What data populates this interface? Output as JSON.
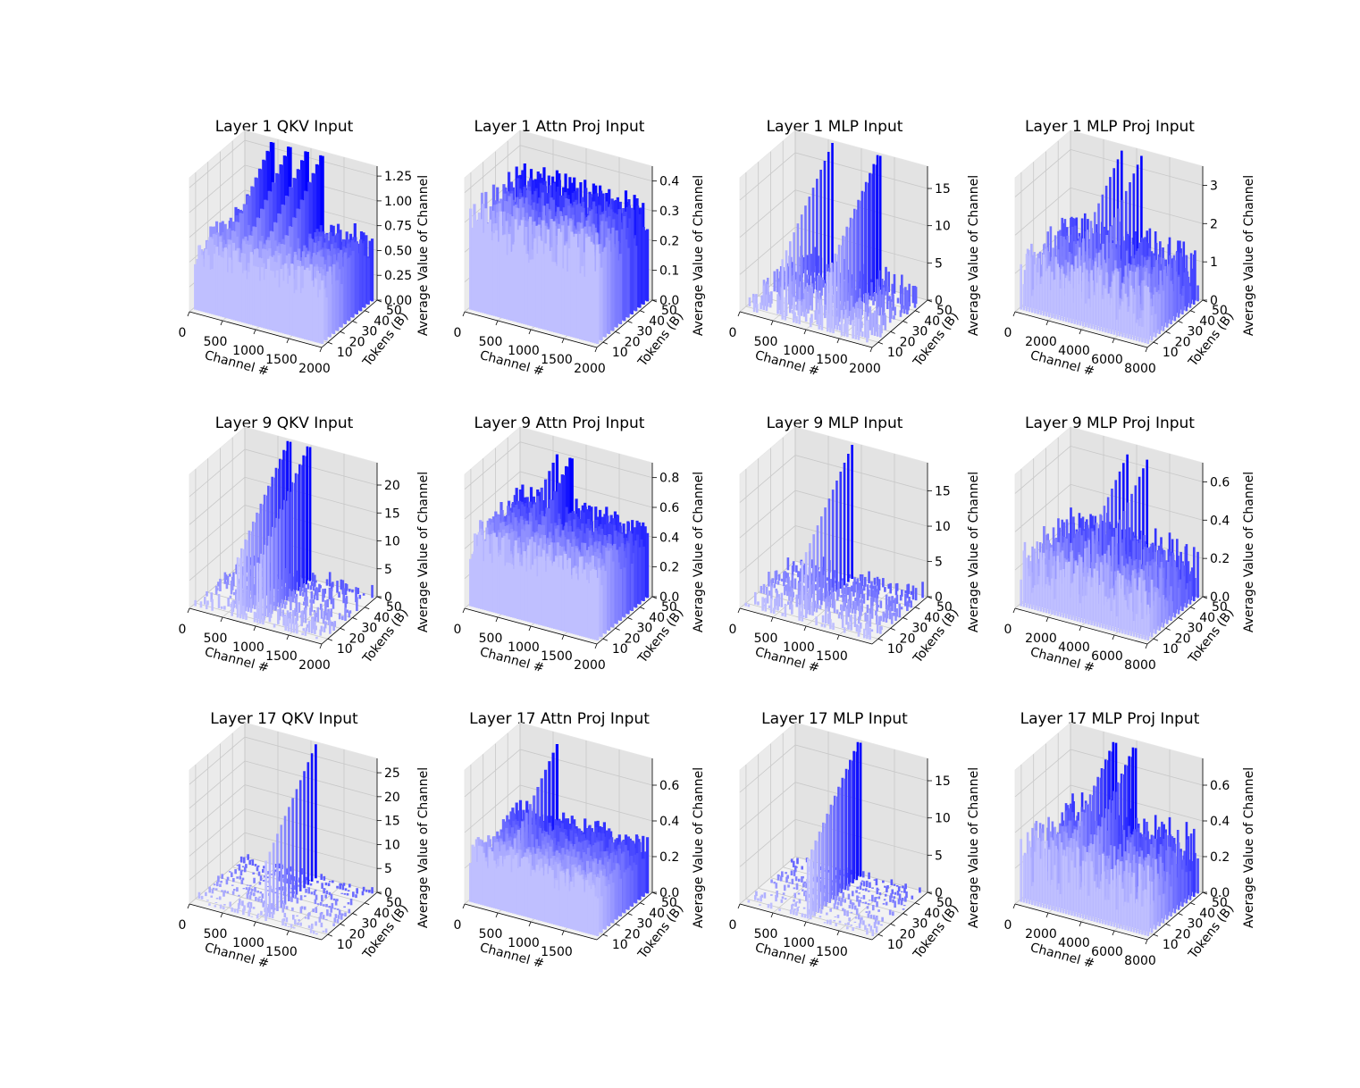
{
  "chart_data": [
    {
      "type": "bar3d",
      "title": "Layer 1 QKV Input",
      "xlabel": "Channel #",
      "ylabel": "Tokens (B)",
      "zlabel": "Average Value of Channel",
      "x_ticks": [
        "0",
        "500",
        "1000",
        "1500",
        "2000"
      ],
      "x_range": [
        0,
        2000
      ],
      "y_ticks": [
        "10",
        "20",
        "30",
        "40",
        "50"
      ],
      "y_range": [
        5,
        50
      ],
      "z_ticks": [
        "0.00",
        "0.25",
        "0.50",
        "0.75",
        "1.00",
        "1.25"
      ],
      "z_range": [
        0,
        1.35
      ],
      "pattern": "dense",
      "typical": 0.62,
      "peak": 1.33,
      "spikes": [
        0.22,
        0.35,
        0.48,
        0.6
      ]
    },
    {
      "type": "bar3d",
      "title": "Layer 1 Attn Proj Input",
      "xlabel": "Channel #",
      "ylabel": "Tokens (B)",
      "zlabel": "Average Value of Channel",
      "x_ticks": [
        "0",
        "500",
        "1000",
        "1500",
        "2000"
      ],
      "x_range": [
        0,
        2000
      ],
      "y_ticks": [
        "10",
        "20",
        "30",
        "40",
        "50"
      ],
      "y_range": [
        5,
        50
      ],
      "z_ticks": [
        "0.0",
        "0.1",
        "0.2",
        "0.3",
        "0.4"
      ],
      "z_range": [
        0,
        0.45
      ],
      "pattern": "dense",
      "typical": 0.3,
      "peak": 0.4,
      "spikes": []
    },
    {
      "type": "bar3d",
      "title": "Layer 1 MLP Input",
      "xlabel": "Channel #",
      "ylabel": "Tokens (B)",
      "zlabel": "Average Value of Channel",
      "x_ticks": [
        "0",
        "500",
        "1000",
        "1500",
        "2000"
      ],
      "x_range": [
        0,
        2000
      ],
      "y_ticks": [
        "10",
        "20",
        "30",
        "40",
        "50"
      ],
      "y_range": [
        5,
        50
      ],
      "z_ticks": [
        "0",
        "5",
        "10",
        "15"
      ],
      "z_range": [
        0,
        18
      ],
      "pattern": "sparse",
      "typical": 1.5,
      "peak": 18,
      "spikes": [
        0.3,
        0.65
      ]
    },
    {
      "type": "bar3d",
      "title": "Layer 1 MLP Proj Input",
      "xlabel": "Channel #",
      "ylabel": "Tokens (B)",
      "zlabel": "Average Value of Channel",
      "x_ticks": [
        "0",
        "2000",
        "4000",
        "6000",
        "8000"
      ],
      "x_range": [
        0,
        8000
      ],
      "y_ticks": [
        "10",
        "20",
        "30",
        "40",
        "50"
      ],
      "y_range": [
        5,
        50
      ],
      "z_ticks": [
        "0",
        "1",
        "2",
        "3"
      ],
      "z_range": [
        0,
        3.5
      ],
      "pattern": "medium",
      "typical": 1.0,
      "peak": 3.4,
      "spikes": [
        0.4,
        0.55
      ]
    },
    {
      "type": "bar3d",
      "title": "Layer 9 QKV Input",
      "xlabel": "Channel #",
      "ylabel": "Tokens (B)",
      "zlabel": "Average Value of Channel",
      "x_ticks": [
        "0",
        "500",
        "1000",
        "1500",
        "2000"
      ],
      "x_range": [
        0,
        2000
      ],
      "y_ticks": [
        "10",
        "20",
        "30",
        "40",
        "50"
      ],
      "y_range": [
        5,
        50
      ],
      "z_ticks": [
        "0",
        "5",
        "10",
        "15",
        "20"
      ],
      "z_range": [
        0,
        24
      ],
      "pattern": "sparse",
      "typical": 1.2,
      "peak": 24,
      "spikes": [
        0.35,
        0.5
      ]
    },
    {
      "type": "bar3d",
      "title": "Layer 9 Attn Proj Input",
      "xlabel": "Channel #",
      "ylabel": "Tokens (B)",
      "zlabel": "Average Value of Channel",
      "x_ticks": [
        "0",
        "500",
        "1000",
        "1500",
        "2000"
      ],
      "x_range": [
        0,
        2000
      ],
      "y_ticks": [
        "10",
        "20",
        "30",
        "40",
        "50"
      ],
      "y_range": [
        5,
        50
      ],
      "z_ticks": [
        "0.0",
        "0.2",
        "0.4",
        "0.6",
        "0.8"
      ],
      "z_range": [
        0,
        0.9
      ],
      "pattern": "dense",
      "typical": 0.45,
      "peak": 0.8,
      "spikes": [
        0.3,
        0.4
      ]
    },
    {
      "type": "bar3d",
      "title": "Layer 9 MLP Input",
      "xlabel": "Channel #",
      "ylabel": "Tokens (B)",
      "zlabel": "Average Value of Channel",
      "x_ticks": [
        "0",
        "500",
        "1000",
        "1500"
      ],
      "x_range": [
        0,
        2000
      ],
      "y_ticks": [
        "10",
        "20",
        "30",
        "40",
        "50"
      ],
      "y_range": [
        5,
        50
      ],
      "z_ticks": [
        "0",
        "5",
        "10",
        "15"
      ],
      "z_range": [
        0,
        19
      ],
      "pattern": "sparse",
      "typical": 1.0,
      "peak": 19,
      "spikes": [
        0.45
      ]
    },
    {
      "type": "bar3d",
      "title": "Layer 9 MLP Proj Input",
      "xlabel": "Channel #",
      "ylabel": "Tokens (B)",
      "zlabel": "Average Value of Channel",
      "x_ticks": [
        "0",
        "2000",
        "4000",
        "6000",
        "8000"
      ],
      "x_range": [
        0,
        8000
      ],
      "y_ticks": [
        "10",
        "20",
        "30",
        "40",
        "50"
      ],
      "y_range": [
        5,
        50
      ],
      "z_ticks": [
        "0.0",
        "0.2",
        "0.4",
        "0.6"
      ],
      "z_range": [
        0,
        0.7
      ],
      "pattern": "medium",
      "typical": 0.2,
      "peak": 0.65,
      "spikes": [
        0.45,
        0.6
      ]
    },
    {
      "type": "bar3d",
      "title": "Layer 17 QKV Input",
      "xlabel": "Channel #",
      "ylabel": "Tokens (B)",
      "zlabel": "Average Value of Channel",
      "x_ticks": [
        "0",
        "500",
        "1000",
        "1500"
      ],
      "x_range": [
        0,
        2000
      ],
      "y_ticks": [
        "10",
        "20",
        "30",
        "40",
        "50"
      ],
      "y_range": [
        5,
        50
      ],
      "z_ticks": [
        "0",
        "5",
        "10",
        "15",
        "20",
        "25"
      ],
      "z_range": [
        0,
        28
      ],
      "pattern": "sparse",
      "typical": 0.6,
      "peak": 28,
      "spikes": [
        0.55
      ]
    },
    {
      "type": "bar3d",
      "title": "Layer 17 Attn Proj Input",
      "xlabel": "Channel #",
      "ylabel": "Tokens (B)",
      "zlabel": "Average Value of Channel",
      "x_ticks": [
        "0",
        "500",
        "1000",
        "1500"
      ],
      "x_range": [
        0,
        2000
      ],
      "y_ticks": [
        "10",
        "20",
        "30",
        "40",
        "50"
      ],
      "y_range": [
        5,
        50
      ],
      "z_ticks": [
        "0.0",
        "0.2",
        "0.4",
        "0.6"
      ],
      "z_range": [
        0,
        0.75
      ],
      "pattern": "dense",
      "typical": 0.28,
      "peak": 0.7,
      "spikes": [
        0.3
      ]
    },
    {
      "type": "bar3d",
      "title": "Layer 17 MLP Input",
      "xlabel": "Channel #",
      "ylabel": "Tokens (B)",
      "zlabel": "Average Value of Channel",
      "x_ticks": [
        "0",
        "500",
        "1000",
        "1500"
      ],
      "x_range": [
        0,
        2000
      ],
      "y_ticks": [
        "10",
        "20",
        "30",
        "40",
        "50"
      ],
      "y_range": [
        5,
        50
      ],
      "z_ticks": [
        "0",
        "5",
        "10",
        "15"
      ],
      "z_range": [
        0,
        18
      ],
      "pattern": "sparse",
      "typical": 0.4,
      "peak": 18,
      "spikes": [
        0.5
      ]
    },
    {
      "type": "bar3d",
      "title": "Layer 17 MLP Proj Input",
      "xlabel": "Channel #",
      "ylabel": "Tokens (B)",
      "zlabel": "Average Value of Channel",
      "x_ticks": [
        "0",
        "2000",
        "4000",
        "6000",
        "8000"
      ],
      "x_range": [
        0,
        8000
      ],
      "y_ticks": [
        "10",
        "20",
        "30",
        "40",
        "50"
      ],
      "y_range": [
        5,
        50
      ],
      "z_ticks": [
        "0.0",
        "0.2",
        "0.4",
        "0.6"
      ],
      "z_range": [
        0,
        0.75
      ],
      "pattern": "medium",
      "typical": 0.25,
      "peak": 0.72,
      "spikes": [
        0.35,
        0.5
      ]
    }
  ],
  "colors": {
    "bar": "#0000ff",
    "pane": "#f2f2f2",
    "grid": "#c8c8c8"
  }
}
